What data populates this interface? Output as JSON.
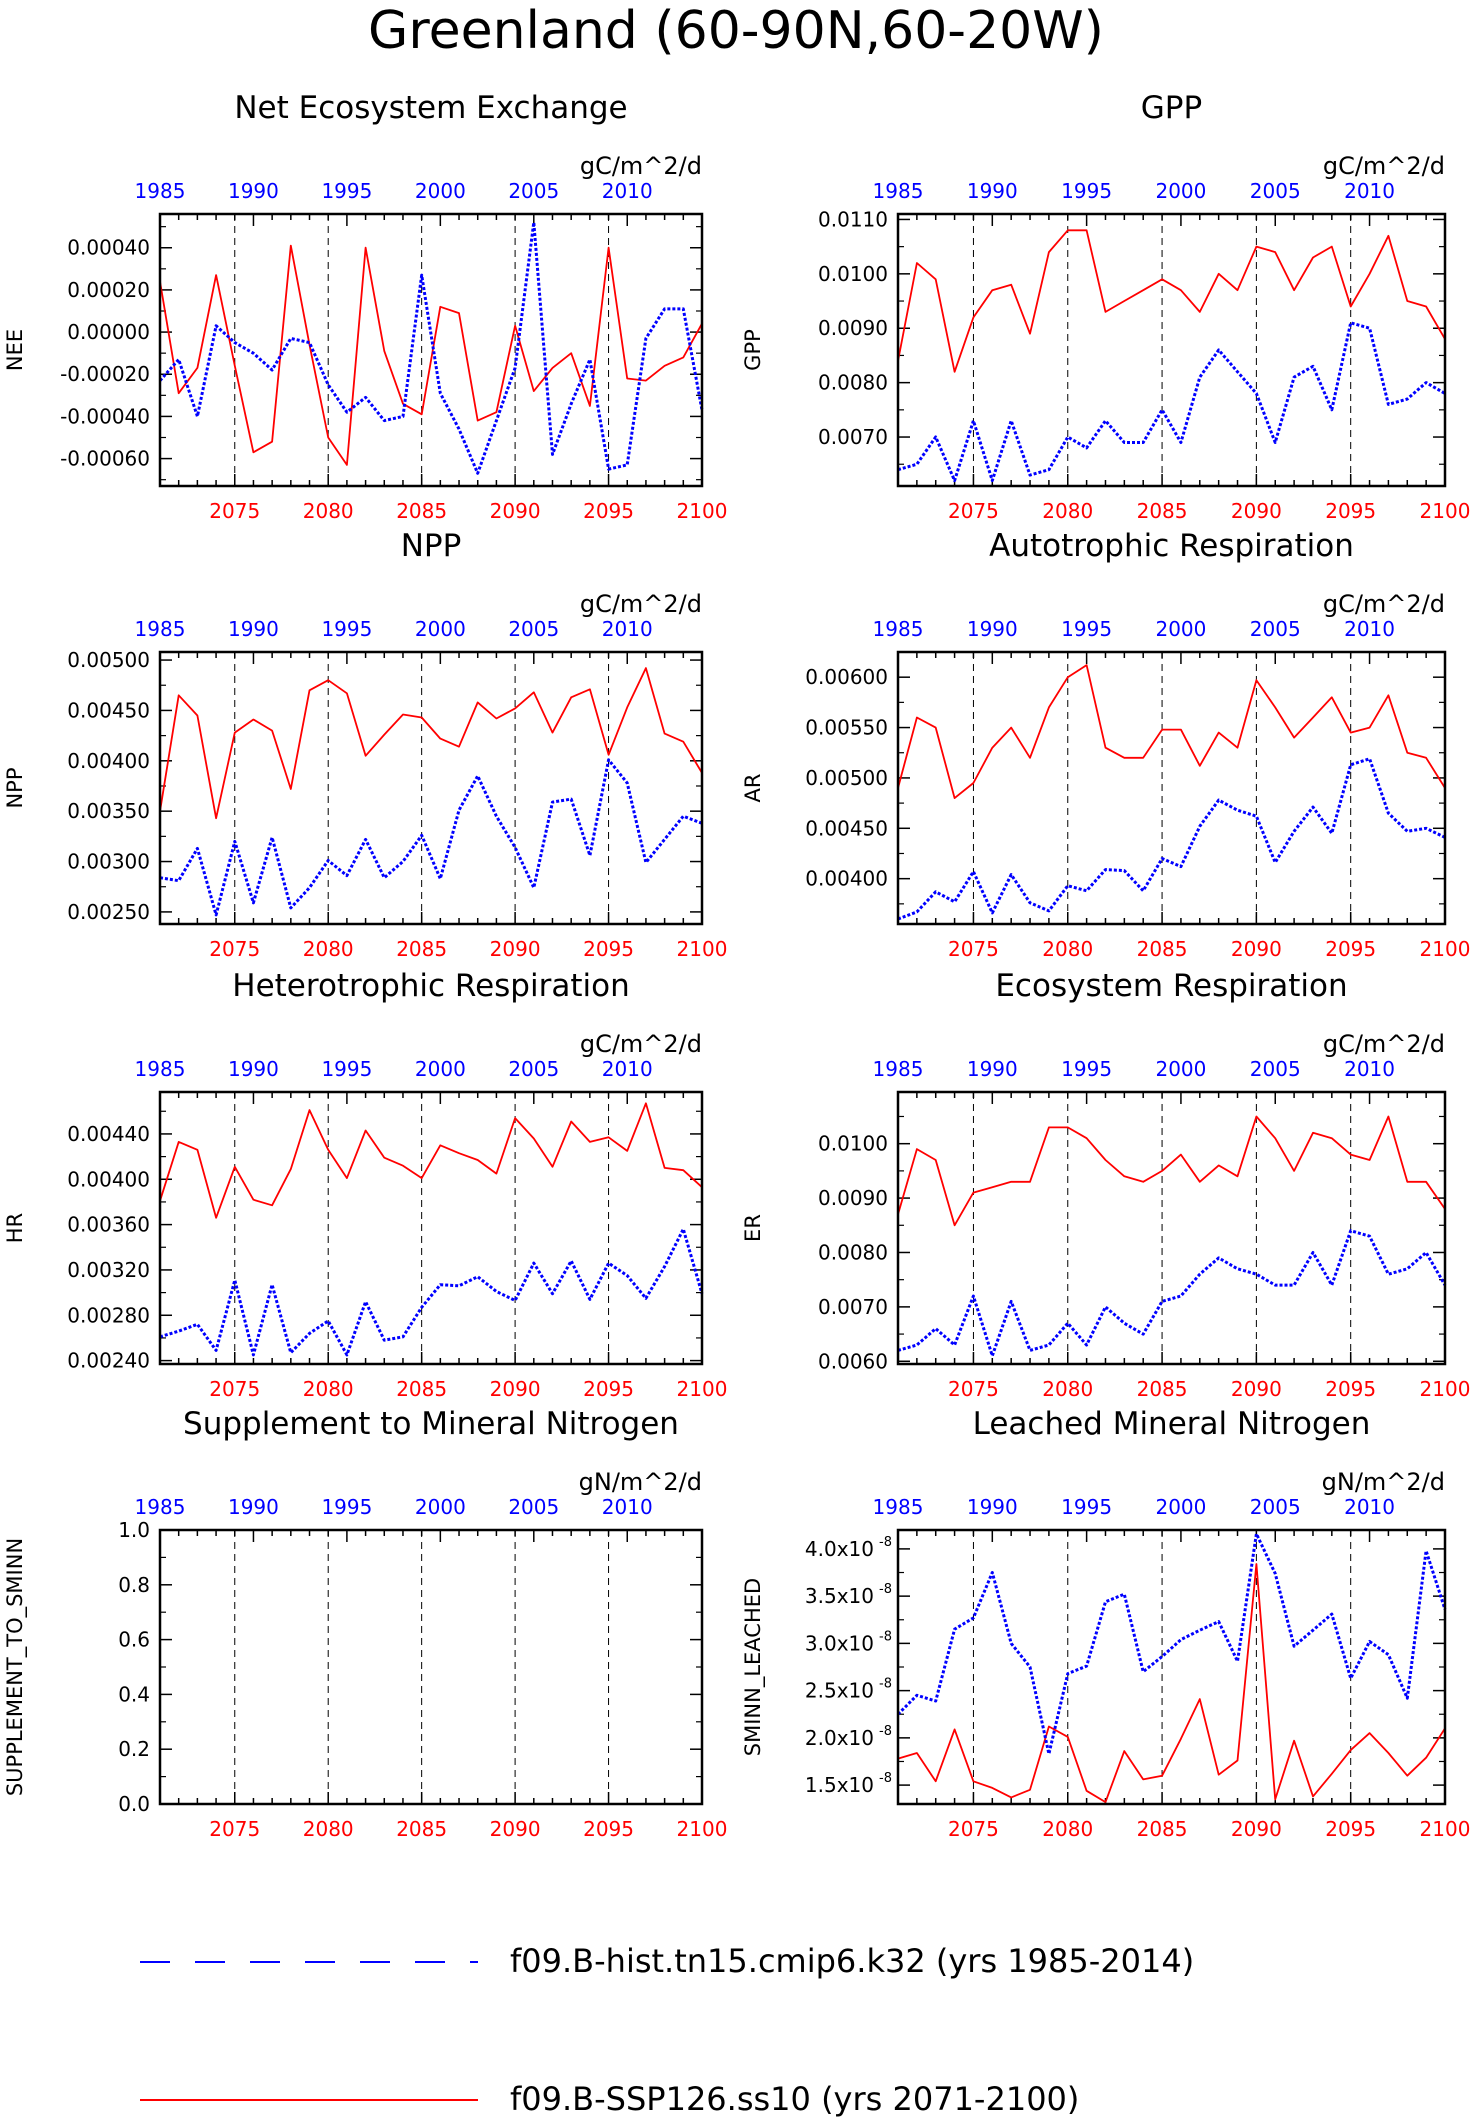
{
  "page_title": "Greenland (60-90N,60-20W)",
  "colors": {
    "ssp": "#ff0000",
    "hist": "#0000ff",
    "axis": "#000000"
  },
  "x_axis": {
    "bottom_label_years": [
      "2075",
      "2080",
      "2085",
      "2090",
      "2095",
      "2100"
    ],
    "top_label_years": [
      "1985",
      "1990",
      "1995",
      "2000",
      "2005",
      "2010"
    ],
    "bottom_range": [
      2071,
      2100
    ],
    "top_range": [
      1985,
      2014
    ]
  },
  "legend": {
    "hist_label": "f09.B-hist.tn15.cmip6.k32 (yrs 1985-2014)",
    "ssp_label": "f09.B-SSP126.ss10 (yrs 2071-2100)"
  },
  "chart_data": [
    {
      "type": "line",
      "title": "Net Ecosystem Exchange",
      "units": "gC/m^2/d",
      "ylabel": "NEE",
      "ylim": [
        -0.00073,
        0.00056
      ],
      "yticks": [
        -0.0006,
        -0.0004,
        -0.0002,
        0.0,
        0.0002,
        0.0004
      ],
      "ytick_labels": [
        "-0.00060",
        "-0.00040",
        "-0.00020",
        "0.00000",
        "0.00020",
        "0.00040"
      ],
      "series": [
        {
          "key": "ssp",
          "values": [
            0.00024,
            -0.00029,
            -0.00017,
            0.00027,
            -0.00016,
            -0.00057,
            -0.00052,
            0.00041,
            -6e-05,
            -0.0005,
            -0.00063,
            0.0004,
            -9e-05,
            -0.00034,
            -0.00039,
            0.00012,
            9e-05,
            -0.00042,
            -0.00038,
            3e-05,
            -0.00028,
            -0.00017,
            -0.0001,
            -0.00035,
            0.0004,
            -0.00022,
            -0.00023,
            -0.00016,
            -0.00012,
            4e-05
          ]
        },
        {
          "key": "hist",
          "values": [
            -0.00023,
            -0.00013,
            -0.0004,
            3e-05,
            -5e-05,
            -0.0001,
            -0.00018,
            -3e-05,
            -5e-05,
            -0.00025,
            -0.00038,
            -0.00031,
            -0.00042,
            -0.0004,
            0.00027,
            -0.00029,
            -0.00046,
            -0.00067,
            -0.00042,
            -0.00017,
            0.00052,
            -0.00058,
            -0.00034,
            -0.00013,
            -0.00065,
            -0.00063,
            -3e-05,
            0.00011,
            0.00011,
            -0.00037
          ]
        }
      ]
    },
    {
      "type": "line",
      "title": "GPP",
      "units": "gC/m^2/d",
      "ylabel": "GPP",
      "ylim": [
        0.0061,
        0.0111
      ],
      "yticks": [
        0.007,
        0.008,
        0.009,
        0.01,
        0.011
      ],
      "ytick_labels": [
        "0.0070",
        "0.0080",
        "0.0090",
        "0.0100",
        "0.0110"
      ],
      "series": [
        {
          "key": "ssp",
          "values": [
            0.0084,
            0.0102,
            0.0099,
            0.0082,
            0.0092,
            0.0097,
            0.0098,
            0.0089,
            0.0104,
            0.0108,
            0.0108,
            0.0093,
            0.0095,
            0.0097,
            0.0099,
            0.0097,
            0.0093,
            0.01,
            0.0097,
            0.0105,
            0.0104,
            0.0097,
            0.0103,
            0.0105,
            0.0094,
            0.01,
            0.0107,
            0.0095,
            0.0094,
            0.0088
          ]
        },
        {
          "key": "hist",
          "values": [
            0.0064,
            0.0065,
            0.007,
            0.0062,
            0.0073,
            0.0062,
            0.0073,
            0.0063,
            0.0064,
            0.007,
            0.0068,
            0.0073,
            0.0069,
            0.0069,
            0.0075,
            0.0069,
            0.0081,
            0.0086,
            0.0082,
            0.0078,
            0.0069,
            0.0081,
            0.0083,
            0.0075,
            0.0091,
            0.009,
            0.0076,
            0.0077,
            0.008,
            0.0078
          ]
        }
      ]
    },
    {
      "type": "line",
      "title": "NPP",
      "units": "gC/m^2/d",
      "ylabel": "NPP",
      "ylim": [
        0.00238,
        0.00508
      ],
      "yticks": [
        0.0025,
        0.003,
        0.0035,
        0.004,
        0.0045,
        0.005
      ],
      "ytick_labels": [
        "0.00250",
        "0.00300",
        "0.00350",
        "0.00400",
        "0.00450",
        "0.00500"
      ],
      "series": [
        {
          "key": "ssp",
          "values": [
            0.0035,
            0.00465,
            0.00445,
            0.00343,
            0.00428,
            0.00441,
            0.0043,
            0.00372,
            0.0047,
            0.0048,
            0.00467,
            0.00405,
            0.00426,
            0.00446,
            0.00443,
            0.00422,
            0.00414,
            0.00458,
            0.00442,
            0.00452,
            0.00468,
            0.00428,
            0.00463,
            0.00471,
            0.00406,
            0.00453,
            0.00492,
            0.00427,
            0.00419,
            0.00388
          ]
        },
        {
          "key": "hist",
          "values": [
            0.00284,
            0.00281,
            0.00313,
            0.00247,
            0.0032,
            0.00259,
            0.00324,
            0.00254,
            0.00274,
            0.00301,
            0.00286,
            0.00322,
            0.00284,
            0.003,
            0.00326,
            0.00283,
            0.00351,
            0.00385,
            0.00345,
            0.00314,
            0.00274,
            0.00359,
            0.00362,
            0.00306,
            0.00401,
            0.00378,
            0.00299,
            0.00322,
            0.00345,
            0.00338
          ]
        }
      ]
    },
    {
      "type": "line",
      "title": "Autotrophic Respiration",
      "units": "gC/m^2/d",
      "ylabel": "AR",
      "ylim": [
        0.00355,
        0.00625
      ],
      "yticks": [
        0.0035,
        0.004,
        0.0045,
        0.005,
        0.0055,
        0.006
      ],
      "ytick_labels": [
        "0.00350",
        "0.00400",
        "0.00450",
        "0.00500",
        "0.00550",
        "0.00600"
      ],
      "series": [
        {
          "key": "ssp",
          "values": [
            0.0049,
            0.0056,
            0.0055,
            0.0048,
            0.00495,
            0.0053,
            0.0055,
            0.0052,
            0.0057,
            0.006,
            0.00612,
            0.0053,
            0.0052,
            0.0052,
            0.00548,
            0.00548,
            0.00512,
            0.00545,
            0.0053,
            0.00597,
            0.0057,
            0.0054,
            0.0056,
            0.0058,
            0.00545,
            0.0055,
            0.00582,
            0.00525,
            0.0052,
            0.0049
          ]
        },
        {
          "key": "hist",
          "values": [
            0.0036,
            0.00367,
            0.00387,
            0.00377,
            0.00407,
            0.00366,
            0.00404,
            0.00376,
            0.00368,
            0.00393,
            0.00388,
            0.00409,
            0.00408,
            0.00388,
            0.0042,
            0.00412,
            0.00452,
            0.00478,
            0.00468,
            0.00462,
            0.00416,
            0.00447,
            0.00471,
            0.00445,
            0.00513,
            0.00519,
            0.00465,
            0.00447,
            0.0045,
            0.00441
          ]
        }
      ]
    },
    {
      "type": "line",
      "title": "Heterotrophic Respiration",
      "units": "gC/m^2/d",
      "ylabel": "HR",
      "ylim": [
        0.00237,
        0.00477
      ],
      "yticks": [
        0.0024,
        0.0028,
        0.0032,
        0.0036,
        0.004,
        0.0044
      ],
      "ytick_labels": [
        "0.00240",
        "0.00280",
        "0.00320",
        "0.00360",
        "0.00400",
        "0.00440"
      ],
      "series": [
        {
          "key": "ssp",
          "values": [
            0.00381,
            0.00433,
            0.00426,
            0.00366,
            0.00411,
            0.00382,
            0.00377,
            0.00409,
            0.00461,
            0.00426,
            0.00401,
            0.00443,
            0.00419,
            0.00412,
            0.00401,
            0.0043,
            0.00423,
            0.00417,
            0.00405,
            0.00454,
            0.00436,
            0.00411,
            0.00451,
            0.00433,
            0.00437,
            0.00425,
            0.00467,
            0.0041,
            0.00408,
            0.00393
          ]
        },
        {
          "key": "hist",
          "values": [
            0.00261,
            0.00266,
            0.00272,
            0.00249,
            0.00311,
            0.00245,
            0.00307,
            0.00247,
            0.00264,
            0.00275,
            0.00245,
            0.00292,
            0.00258,
            0.00261,
            0.00287,
            0.00307,
            0.00306,
            0.00314,
            0.00301,
            0.00293,
            0.00326,
            0.00299,
            0.00328,
            0.00294,
            0.00326,
            0.00315,
            0.00295,
            0.00323,
            0.00356,
            0.00299
          ]
        }
      ]
    },
    {
      "type": "line",
      "title": "Ecosystem Respiration",
      "units": "gC/m^2/d",
      "ylabel": "ER",
      "ylim": [
        0.00595,
        0.01095
      ],
      "yticks": [
        0.006,
        0.007,
        0.008,
        0.009,
        0.01
      ],
      "ytick_labels": [
        "0.0060",
        "0.0070",
        "0.0080",
        "0.0090",
        "0.0100"
      ],
      "series": [
        {
          "key": "ssp",
          "values": [
            0.0087,
            0.0099,
            0.0097,
            0.0085,
            0.0091,
            0.0092,
            0.0093,
            0.0093,
            0.0103,
            0.0103,
            0.0101,
            0.0097,
            0.0094,
            0.0093,
            0.0095,
            0.0098,
            0.0093,
            0.0096,
            0.0094,
            0.0105,
            0.0101,
            0.0095,
            0.0102,
            0.0101,
            0.0098,
            0.0097,
            0.0105,
            0.0093,
            0.0093,
            0.0088
          ]
        },
        {
          "key": "hist",
          "values": [
            0.0062,
            0.0063,
            0.0066,
            0.0063,
            0.0072,
            0.0061,
            0.0071,
            0.0062,
            0.0063,
            0.0067,
            0.0063,
            0.007,
            0.0067,
            0.0065,
            0.0071,
            0.0072,
            0.0076,
            0.0079,
            0.0077,
            0.0076,
            0.0074,
            0.0074,
            0.008,
            0.0074,
            0.0084,
            0.0083,
            0.0076,
            0.0077,
            0.008,
            0.0074
          ]
        }
      ]
    },
    {
      "type": "line",
      "title": "Supplement to Mineral Nitrogen",
      "units": "gN/m^2/d",
      "ylabel": "SUPPLEMENT_TO_SMINN",
      "ylim": [
        0,
        1
      ],
      "yticks": [
        0,
        0.2,
        0.4,
        0.6,
        0.8,
        1.0
      ],
      "ytick_labels": [
        "0.0",
        "0.2",
        "0.4",
        "0.6",
        "0.8",
        "1.0"
      ],
      "series": []
    },
    {
      "type": "line",
      "title": "Leached Mineral Nitrogen",
      "units": "gN/m^2/d",
      "ylabel": "SMINN_LEACHED",
      "ylim": [
        1.3e-08,
        4.2e-08
      ],
      "yticks": [
        1.5e-08,
        2e-08,
        2.5e-08,
        3e-08,
        3.5e-08,
        4e-08
      ],
      "ytick_labels": [
        "1.5x10",
        "2.0x10",
        "2.5x10",
        "3.0x10",
        "3.5x10",
        "4.0x10"
      ],
      "ytick_exponent": "-8",
      "series": [
        {
          "key": "ssp",
          "values": [
            1.78e-08,
            1.84e-08,
            1.54e-08,
            2.09e-08,
            1.54e-08,
            1.47e-08,
            1.37e-08,
            1.45e-08,
            2.12e-08,
            2.01e-08,
            1.44e-08,
            1.32e-08,
            1.86e-08,
            1.56e-08,
            1.6e-08,
            1.99e-08,
            2.41e-08,
            1.61e-08,
            1.76e-08,
            3.84e-08,
            1.35e-08,
            1.97e-08,
            1.38e-08,
            1.62e-08,
            1.87e-08,
            2.05e-08,
            1.84e-08,
            1.6e-08,
            1.79e-08,
            2.1e-08
          ]
        },
        {
          "key": "hist",
          "values": [
            2.25e-08,
            2.45e-08,
            2.39e-08,
            3.15e-08,
            3.27e-08,
            3.75e-08,
            3e-08,
            2.75e-08,
            1.83e-08,
            2.68e-08,
            2.76e-08,
            3.44e-08,
            3.52e-08,
            2.7e-08,
            2.86e-08,
            3.04e-08,
            3.14e-08,
            3.23e-08,
            2.81e-08,
            4.16e-08,
            3.74e-08,
            2.97e-08,
            3.14e-08,
            3.31e-08,
            2.63e-08,
            3.02e-08,
            2.88e-08,
            2.42e-08,
            3.98e-08,
            3.36e-08
          ]
        }
      ]
    }
  ]
}
